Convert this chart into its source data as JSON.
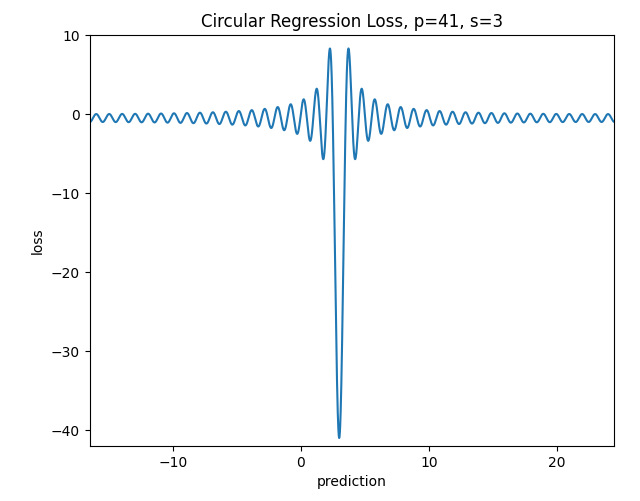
{
  "p": 41,
  "s": 3,
  "x_min": -16.5,
  "x_max": 24.5,
  "y_min": -42,
  "y_max": 10,
  "title": "Circular Regression Loss, p=41, s=3",
  "xlabel": "prediction",
  "ylabel": "loss",
  "line_color": "#1f77b4",
  "line_width": 1.5,
  "n_points": 20000,
  "figsize": [
    6.4,
    5.01
  ],
  "dpi": 100,
  "xticks": [
    -10,
    0,
    10,
    20
  ],
  "yticks": [
    10,
    0,
    -10,
    -20,
    -30,
    -40
  ]
}
